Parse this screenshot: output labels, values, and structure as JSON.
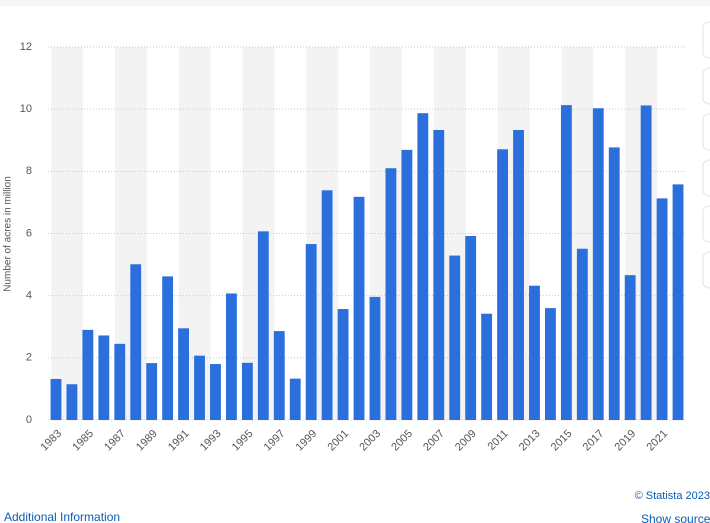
{
  "chart_data": {
    "type": "bar",
    "y_label": "Number of acres in million",
    "categories": [
      "1983",
      null,
      "1985",
      null,
      "1987",
      null,
      "1989",
      null,
      "1991",
      null,
      "1993",
      null,
      "1995",
      null,
      "1997",
      null,
      "1999",
      null,
      "2001",
      null,
      "2003",
      null,
      "2005",
      null,
      "2007",
      null,
      "2009",
      null,
      "2011",
      null,
      "2013",
      null,
      "2015",
      null,
      "2017",
      null,
      "2019",
      null,
      "2021",
      null
    ],
    "values": [
      1.32,
      1.15,
      2.9,
      2.72,
      2.45,
      5.01,
      1.83,
      4.62,
      2.95,
      2.07,
      1.8,
      4.07,
      1.84,
      6.07,
      2.86,
      1.33,
      5.66,
      7.39,
      3.57,
      7.18,
      3.96,
      8.1,
      8.69,
      9.87,
      9.33,
      5.29,
      5.92,
      3.42,
      8.71,
      9.33,
      4.32,
      3.6,
      10.13,
      5.51,
      10.03,
      8.77,
      4.66,
      10.12,
      7.13,
      7.58
    ],
    "color": "#2b6fdc",
    "ylim": [
      0,
      12
    ],
    "yticks": [
      0,
      2,
      4,
      6,
      8,
      10,
      12
    ],
    "grid": true
  },
  "footer": {
    "credit": "© Statista 2023",
    "additional_information": "Additional Information",
    "show_source": "Show source"
  }
}
